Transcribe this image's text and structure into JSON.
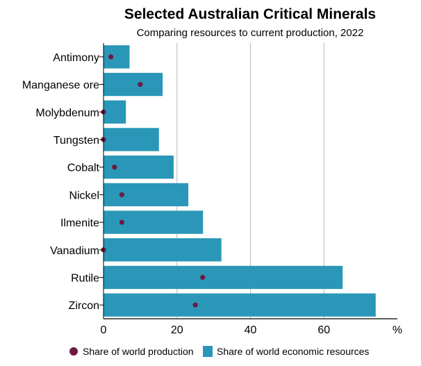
{
  "chart_data": {
    "type": "bar",
    "orientation": "horizontal",
    "title": "Selected Australian Critical Minerals",
    "subtitle": "Comparing resources to current production, 2022",
    "categories": [
      "Antimony",
      "Manganese ore",
      "Molybdenum",
      "Tungsten",
      "Cobalt",
      "Nickel",
      "Ilmenite",
      "Vanadium",
      "Rutile",
      "Zircon"
    ],
    "series": [
      {
        "name": "Share of world economic resources",
        "kind": "bar",
        "color": "#2a97b8",
        "values": [
          7,
          16,
          6,
          15,
          19,
          23,
          27,
          32,
          65,
          74
        ]
      },
      {
        "name": "Share of world production",
        "kind": "dot",
        "color": "#6d1a45",
        "values": [
          2,
          10,
          0,
          0,
          3,
          5,
          5,
          0,
          27,
          25
        ]
      }
    ],
    "xlim": [
      0,
      80
    ],
    "xticks": [
      "0",
      "20",
      "40",
      "60"
    ],
    "tick_values": [
      0,
      20,
      40,
      60
    ],
    "unit_label": "%",
    "grid": true,
    "legend_position": "bottom"
  }
}
